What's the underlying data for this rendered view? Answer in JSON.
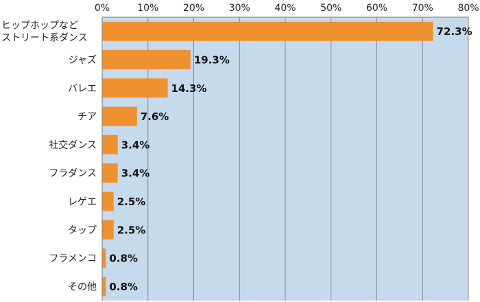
{
  "chart_data": {
    "type": "bar",
    "orientation": "horizontal",
    "title": "",
    "xlabel": "",
    "ylabel": "",
    "categories": [
      [
        "ヒップホップなど",
        "ストリート系ダンス"
      ],
      [
        "ジャズ"
      ],
      [
        "バレエ"
      ],
      [
        "チア"
      ],
      [
        "社交ダンス"
      ],
      [
        "フラダンス"
      ],
      [
        "レゲエ"
      ],
      [
        "タップ"
      ],
      [
        "フラメンコ"
      ],
      [
        "その他"
      ]
    ],
    "values": [
      72.3,
      19.3,
      14.3,
      7.6,
      3.4,
      3.4,
      2.5,
      2.5,
      0.8,
      0.8
    ],
    "value_labels": [
      "72.3%",
      "19.3%",
      "14.3%",
      "7.6%",
      "3.4%",
      "3.4%",
      "2.5%",
      "2.5%",
      "0.8%",
      "0.8%"
    ],
    "xlim": [
      0,
      80
    ],
    "x_ticks": [
      0,
      10,
      20,
      30,
      40,
      50,
      60,
      70,
      80
    ],
    "x_tick_labels": [
      "0%",
      "10%",
      "20%",
      "30%",
      "40%",
      "50%",
      "60%",
      "70%",
      "80%"
    ],
    "x_axis_position": "top",
    "grid": true,
    "legend": "none",
    "colors": {
      "bar": "#f0912f",
      "plot_background": "#c5daec",
      "gridline": "#8a8a8a",
      "axis": "#7a7a7a"
    }
  }
}
